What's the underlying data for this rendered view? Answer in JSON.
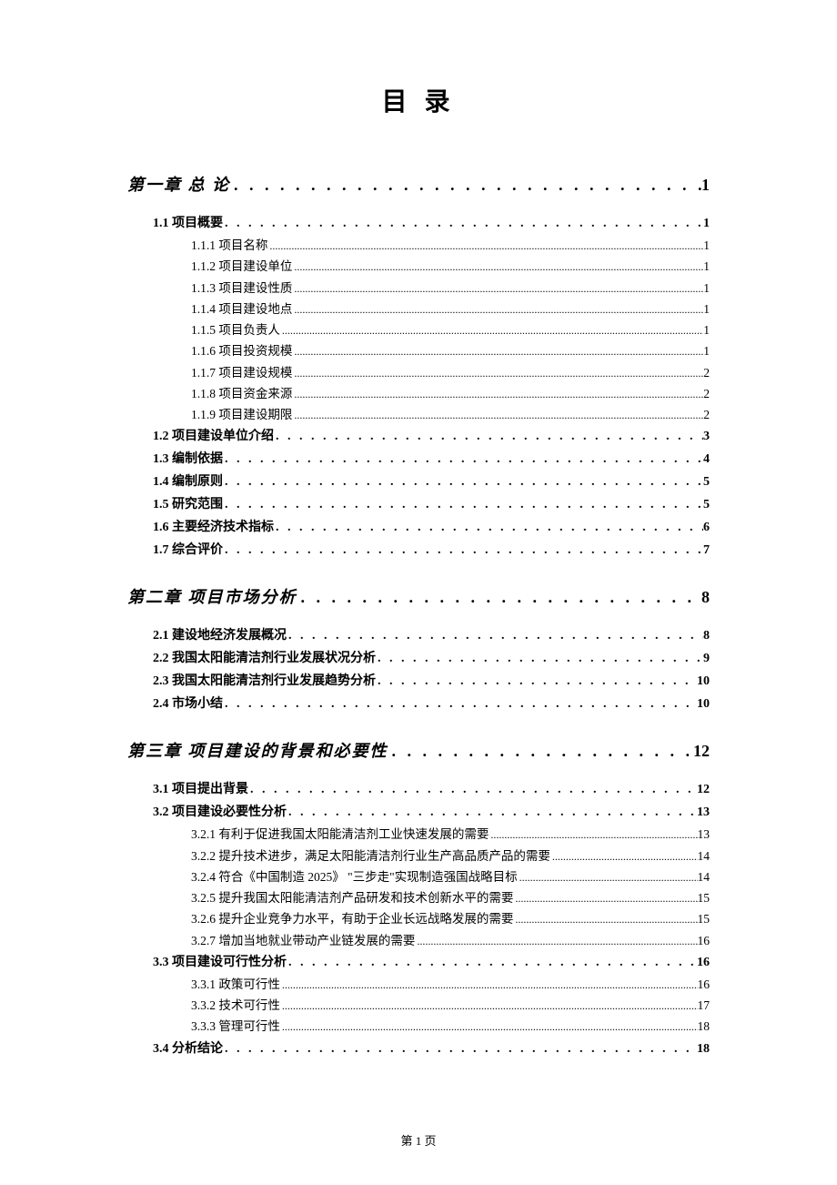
{
  "title": "目 录",
  "footer": "第 1 页",
  "toc": [
    {
      "level": "chapter",
      "label": "第一章 总 论",
      "page": "1"
    },
    {
      "level": "section",
      "label": "1.1 项目概要",
      "page": "1"
    },
    {
      "level": "subsection",
      "label": "1.1.1 项目名称",
      "page": "1"
    },
    {
      "level": "subsection",
      "label": "1.1.2 项目建设单位",
      "page": "1"
    },
    {
      "level": "subsection",
      "label": "1.1.3 项目建设性质",
      "page": "1"
    },
    {
      "level": "subsection",
      "label": "1.1.4 项目建设地点",
      "page": "1"
    },
    {
      "level": "subsection",
      "label": "1.1.5 项目负责人",
      "page": "1"
    },
    {
      "level": "subsection",
      "label": "1.1.6 项目投资规模",
      "page": "1"
    },
    {
      "level": "subsection",
      "label": "1.1.7 项目建设规模",
      "page": "2"
    },
    {
      "level": "subsection",
      "label": "1.1.8 项目资金来源",
      "page": "2"
    },
    {
      "level": "subsection",
      "label": "1.1.9 项目建设期限",
      "page": "2"
    },
    {
      "level": "section",
      "label": "1.2 项目建设单位介绍",
      "page": "3"
    },
    {
      "level": "section",
      "label": "1.3 编制依据",
      "page": "4"
    },
    {
      "level": "section",
      "label": "1.4 编制原则",
      "page": "5"
    },
    {
      "level": "section",
      "label": "1.5 研究范围",
      "page": "5"
    },
    {
      "level": "section",
      "label": "1.6 主要经济技术指标",
      "page": "6"
    },
    {
      "level": "section",
      "label": "1.7 综合评价",
      "page": "7"
    },
    {
      "level": "chapter",
      "label": "第二章 项目市场分析",
      "page": "8"
    },
    {
      "level": "section",
      "label": "2.1 建设地经济发展概况",
      "page": "8"
    },
    {
      "level": "section",
      "label": "2.2 我国太阳能清洁剂行业发展状况分析",
      "page": "9"
    },
    {
      "level": "section",
      "label": "2.3 我国太阳能清洁剂行业发展趋势分析",
      "page": "10"
    },
    {
      "level": "section",
      "label": "2.4 市场小结",
      "page": "10"
    },
    {
      "level": "chapter",
      "label": "第三章 项目建设的背景和必要性",
      "page": "12"
    },
    {
      "level": "section",
      "label": "3.1 项目提出背景",
      "page": "12"
    },
    {
      "level": "section",
      "label": "3.2 项目建设必要性分析",
      "page": "13"
    },
    {
      "level": "subsection",
      "label": "3.2.1 有利于促进我国太阳能清洁剂工业快速发展的需要",
      "page": "13"
    },
    {
      "level": "subsection",
      "label": "3.2.2 提升技术进步，满足太阳能清洁剂行业生产高品质产品的需要",
      "page": "14"
    },
    {
      "level": "subsection",
      "label": "3.2.4 符合《中国制造 2025》 \"三步走\"实现制造强国战略目标",
      "page": "14"
    },
    {
      "level": "subsection",
      "label": "3.2.5 提升我国太阳能清洁剂产品研发和技术创新水平的需要",
      "page": "15"
    },
    {
      "level": "subsection",
      "label": "3.2.6 提升企业竞争力水平，有助于企业长远战略发展的需要",
      "page": "15"
    },
    {
      "level": "subsection",
      "label": "3.2.7 增加当地就业带动产业链发展的需要",
      "page": "16"
    },
    {
      "level": "section",
      "label": "3.3 项目建设可行性分析",
      "page": "16"
    },
    {
      "level": "subsection",
      "label": "3.3.1 政策可行性",
      "page": "16"
    },
    {
      "level": "subsection",
      "label": "3.3.2 技术可行性",
      "page": "17"
    },
    {
      "level": "subsection",
      "label": "3.3.3 管理可行性",
      "page": "18"
    },
    {
      "level": "section",
      "label": "3.4 分析结论",
      "page": "18"
    }
  ],
  "dots": {
    "chapter": ". . . . . . . . . . . . . . . . . . . . . . . . . . . . . . . . . . . . . . . . . . . . . . . . . . . . . . . . . . . . . . . . . . . . . . . . . . . . . . . . . . . . . .",
    "section": ". . . . . . . . . . . . . . . . . . . . . . . . . . . . . . . . . . . . . . . . . . . . . . . . . . . . . . . . . . . . . . . . . . . . . . . . . . . . . . . . . . . . . . . . . . . . . . . . . . . .",
    "subsection": "................................................................................................................................................................................................................................................"
  }
}
